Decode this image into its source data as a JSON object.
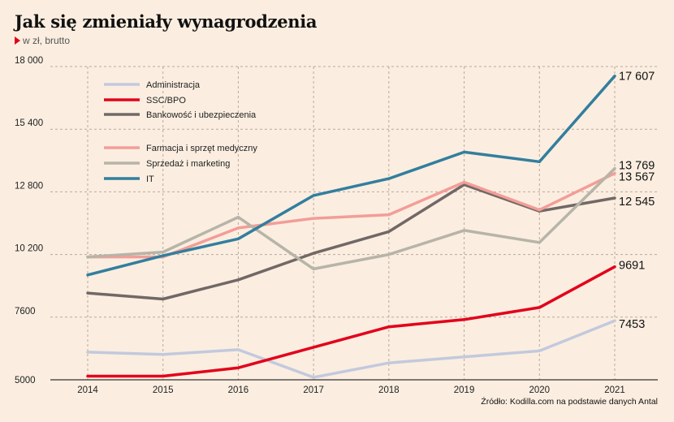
{
  "header": {
    "title": "Jak się zmieniały wynagrodzenia",
    "subtitle": "w zł, brutto"
  },
  "footer": {
    "source": "Źródło: Kodilla.com na podstawie danych Antal"
  },
  "colors": {
    "background": "#fbeee0",
    "grid": "#b9aa9a",
    "axis": "#333333"
  },
  "chart_data": {
    "type": "line",
    "title": "Jak się zmieniały wynagrodzenia",
    "subtitle": "w zł, brutto",
    "xlabel": "",
    "ylabel": "",
    "x": [
      "2014",
      "2015",
      "2016",
      "2017",
      "2018",
      "2019",
      "2020",
      "2021"
    ],
    "ylim": [
      5000,
      18000
    ],
    "yticks": [
      5000,
      7600,
      10200,
      12800,
      15400,
      18000
    ],
    "ytick_labels": [
      "5000",
      "7600",
      "10 200",
      "12 800",
      "15 400",
      "18 000"
    ],
    "grid": true,
    "legend_position": "top-left",
    "series": [
      {
        "name": "Administracja",
        "color": "#c3c9dd",
        "values": [
          6150,
          6050,
          6250,
          5100,
          5700,
          5950,
          6200,
          7453
        ],
        "end_label": "7453"
      },
      {
        "name": "SSC/BPO",
        "color": "#e3001b",
        "values": [
          5150,
          5150,
          5500,
          6350,
          7200,
          7500,
          8000,
          9691
        ],
        "end_label": "9691"
      },
      {
        "name": "Bankowość i ubezpieczenia",
        "color": "#716866",
        "values": [
          8600,
          8350,
          9150,
          10250,
          11150,
          13100,
          12000,
          12545
        ],
        "end_label": "12 545"
      },
      {
        "name": "Farmacja i sprzęt medyczny",
        "color": "#f39d98",
        "values": [
          10100,
          10100,
          11300,
          11700,
          11850,
          13200,
          12050,
          13567
        ],
        "end_label": "13 567"
      },
      {
        "name": "Sprzedaż i marketing",
        "color": "#b7b4a8",
        "values": [
          10100,
          10300,
          11750,
          9600,
          10200,
          11200,
          10700,
          13769
        ],
        "end_label": "13 769"
      },
      {
        "name": "IT",
        "color": "#337e9e",
        "values": [
          9350,
          10150,
          10850,
          12650,
          13350,
          14450,
          14050,
          17607
        ],
        "end_label": "17 607"
      }
    ]
  }
}
